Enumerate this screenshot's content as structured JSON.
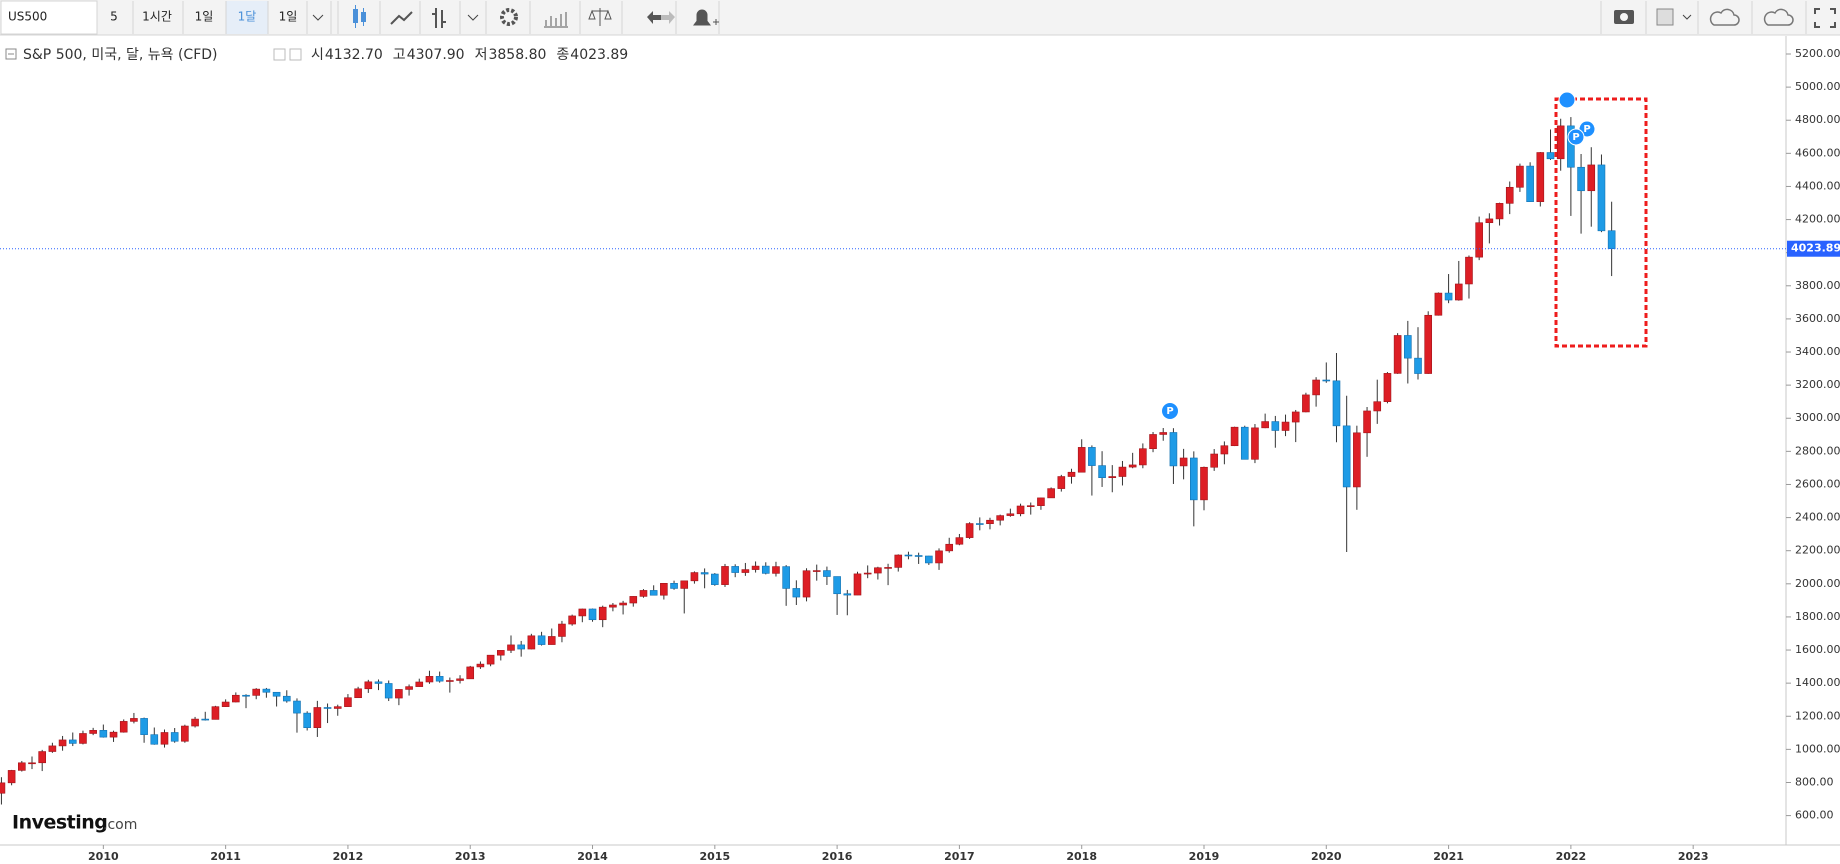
{
  "toolbar": {
    "symbol": "US500",
    "intervals": [
      "5",
      "1시간",
      "1일",
      "1달",
      "1일"
    ]
  },
  "legend": {
    "name": "S&P 500, 미국, 달, 뉴욕 (CFD)",
    "items": [
      {
        "label": "시",
        "value": "4132.70"
      },
      {
        "label": "고",
        "value": "4307.90"
      },
      {
        "label": "저",
        "value": "3858.80"
      },
      {
        "label": "종",
        "value": "4023.89"
      }
    ]
  },
  "watermark": {
    "brand": "Investing",
    "suffix": ".com"
  },
  "chart_data": {
    "type": "candlestick",
    "up_color": "#dd1e25",
    "down_color": "#1e9be6",
    "x": [
      "2009-03",
      "2009-04",
      "2009-05",
      "2009-06",
      "2009-07",
      "2009-08",
      "2009-09",
      "2009-10",
      "2009-11",
      "2009-12",
      "2010-01",
      "2010-02",
      "2010-03",
      "2010-04",
      "2010-05",
      "2010-06",
      "2010-07",
      "2010-08",
      "2010-09",
      "2010-10",
      "2010-11",
      "2010-12",
      "2011-01",
      "2011-02",
      "2011-03",
      "2011-04",
      "2011-05",
      "2011-06",
      "2011-07",
      "2011-08",
      "2011-09",
      "2011-10",
      "2011-11",
      "2011-12",
      "2012-01",
      "2012-02",
      "2012-03",
      "2012-04",
      "2012-05",
      "2012-06",
      "2012-07",
      "2012-08",
      "2012-09",
      "2012-10",
      "2012-11",
      "2012-12",
      "2013-01",
      "2013-02",
      "2013-03",
      "2013-04",
      "2013-05",
      "2013-06",
      "2013-07",
      "2013-08",
      "2013-09",
      "2013-10",
      "2013-11",
      "2013-12",
      "2014-01",
      "2014-02",
      "2014-03",
      "2014-04",
      "2014-05",
      "2014-06",
      "2014-07",
      "2014-08",
      "2014-09",
      "2014-10",
      "2014-11",
      "2014-12",
      "2015-01",
      "2015-02",
      "2015-03",
      "2015-04",
      "2015-05",
      "2015-06",
      "2015-07",
      "2015-08",
      "2015-09",
      "2015-10",
      "2015-11",
      "2015-12",
      "2016-01",
      "2016-02",
      "2016-03",
      "2016-04",
      "2016-05",
      "2016-06",
      "2016-07",
      "2016-08",
      "2016-09",
      "2016-10",
      "2016-11",
      "2016-12",
      "2017-01",
      "2017-02",
      "2017-03",
      "2017-04",
      "2017-05",
      "2017-06",
      "2017-07",
      "2017-08",
      "2017-09",
      "2017-10",
      "2017-11",
      "2017-12",
      "2018-01",
      "2018-02",
      "2018-03",
      "2018-04",
      "2018-05",
      "2018-06",
      "2018-07",
      "2018-08",
      "2018-09",
      "2018-10",
      "2018-11",
      "2018-12",
      "2019-01",
      "2019-02",
      "2019-03",
      "2019-04",
      "2019-05",
      "2019-06",
      "2019-07",
      "2019-08",
      "2019-09",
      "2019-10",
      "2019-11",
      "2019-12",
      "2020-01",
      "2020-02",
      "2020-03",
      "2020-04",
      "2020-05",
      "2020-06",
      "2020-07",
      "2020-08",
      "2020-09",
      "2020-10",
      "2020-11",
      "2020-12",
      "2021-01",
      "2021-02",
      "2021-03",
      "2021-04",
      "2021-05",
      "2021-06",
      "2021-07",
      "2021-08",
      "2021-09",
      "2021-10",
      "2021-11",
      "2021-12",
      "2022-01",
      "2022-02",
      "2022-03",
      "2022-04",
      "2022-05"
    ],
    "open": [
      735,
      798,
      873,
      919,
      919,
      987,
      1021,
      1057,
      1036,
      1096,
      1115,
      1074,
      1104,
      1169,
      1187,
      1089,
      1031,
      1102,
      1049,
      1141,
      1183,
      1181,
      1258,
      1286,
      1327,
      1326,
      1364,
      1345,
      1321,
      1292,
      1219,
      1131,
      1253,
      1247,
      1258,
      1312,
      1366,
      1408,
      1398,
      1310,
      1362,
      1379,
      1407,
      1441,
      1412,
      1416,
      1426,
      1498,
      1515,
      1569,
      1598,
      1631,
      1606,
      1686,
      1633,
      1682,
      1757,
      1806,
      1848,
      1783,
      1859,
      1872,
      1884,
      1924,
      1960,
      1931,
      2003,
      1972,
      2018,
      2068,
      2059,
      1995,
      2105,
      2068,
      2086,
      2107,
      2063,
      2104,
      1972,
      1920,
      2079,
      2080,
      2044,
      1940,
      1932,
      2060,
      2065,
      2097,
      2099,
      2174,
      2171,
      2168,
      2126,
      2199,
      2239,
      2279,
      2364,
      2363,
      2384,
      2412,
      2423,
      2470,
      2472,
      2519,
      2575,
      2648,
      2674,
      2824,
      2714,
      2641,
      2648,
      2705,
      2718,
      2816,
      2902,
      2914,
      2712,
      2760,
      2507,
      2704,
      2784,
      2834,
      2946,
      2752,
      2942,
      2980,
      2926,
      2977,
      3038,
      3141,
      3231,
      3226,
      2954,
      2585,
      2912,
      3044,
      3100,
      3271,
      3500,
      3363,
      3270,
      3622,
      3756,
      3714,
      3811,
      3973,
      4181,
      4204,
      4298,
      4395,
      4523,
      4308,
      4605,
      4567,
      4766,
      4516,
      4374,
      4530,
      4132.7
    ],
    "high": [
      832,
      876,
      930,
      957,
      997,
      1040,
      1081,
      1102,
      1113,
      1130,
      1150,
      1113,
      1181,
      1220,
      1192,
      1132,
      1120,
      1129,
      1149,
      1196,
      1227,
      1263,
      1302,
      1344,
      1333,
      1370,
      1371,
      1346,
      1357,
      1308,
      1230,
      1293,
      1277,
      1270,
      1334,
      1378,
      1420,
      1422,
      1416,
      1364,
      1392,
      1427,
      1475,
      1470,
      1434,
      1448,
      1504,
      1531,
      1570,
      1598,
      1688,
      1655,
      1698,
      1710,
      1730,
      1776,
      1814,
      1850,
      1851,
      1868,
      1884,
      1897,
      1925,
      1968,
      1991,
      2005,
      2019,
      2018,
      2075,
      2093,
      2065,
      2120,
      2118,
      2126,
      2135,
      2130,
      2133,
      2113,
      2021,
      2094,
      2116,
      2104,
      2044,
      1963,
      2073,
      2111,
      2103,
      2121,
      2178,
      2194,
      2188,
      2169,
      2214,
      2278,
      2301,
      2372,
      2401,
      2399,
      2418,
      2454,
      2484,
      2491,
      2520,
      2582,
      2658,
      2695,
      2873,
      2836,
      2801,
      2717,
      2742,
      2791,
      2848,
      2917,
      2941,
      2940,
      2815,
      2800,
      2708,
      2814,
      2860,
      2949,
      2955,
      2965,
      3028,
      3014,
      3022,
      3050,
      3154,
      3248,
      3337,
      3394,
      3136,
      2955,
      3068,
      3233,
      3279,
      3514,
      3588,
      3550,
      3646,
      3760,
      3871,
      3950,
      3983,
      4218,
      4238,
      4302,
      4430,
      4538,
      4546,
      4608,
      4744,
      4809,
      4819,
      4596,
      4637,
      4593,
      4307.9
    ],
    "low": [
      667,
      783,
      866,
      881,
      869,
      979,
      992,
      1020,
      1030,
      1086,
      1071,
      1045,
      1101,
      1157,
      1040,
      1028,
      1011,
      1040,
      1040,
      1132,
      1174,
      1181,
      1257,
      1284,
      1249,
      1303,
      1312,
      1259,
      1282,
      1101,
      1114,
      1075,
      1159,
      1203,
      1258,
      1312,
      1341,
      1358,
      1292,
      1267,
      1325,
      1378,
      1396,
      1403,
      1343,
      1398,
      1426,
      1486,
      1502,
      1537,
      1582,
      1560,
      1604,
      1627,
      1633,
      1647,
      1747,
      1768,
      1771,
      1738,
      1834,
      1815,
      1862,
      1916,
      1930,
      1905,
      1964,
      1821,
      2001,
      1973,
      1988,
      1981,
      2040,
      2048,
      2068,
      2057,
      2044,
      1867,
      1872,
      1894,
      2019,
      1993,
      1812,
      1810,
      1932,
      2034,
      2026,
      1992,
      2074,
      2148,
      2120,
      2114,
      2084,
      2188,
      2233,
      2271,
      2323,
      2329,
      2353,
      2405,
      2408,
      2418,
      2447,
      2519,
      2557,
      2605,
      2673,
      2533,
      2585,
      2553,
      2594,
      2698,
      2698,
      2795,
      2864,
      2603,
      2631,
      2347,
      2444,
      2682,
      2722,
      2832,
      2751,
      2729,
      2940,
      2822,
      2892,
      2856,
      3036,
      3070,
      3214,
      2855,
      2192,
      2447,
      2767,
      2966,
      3090,
      3268,
      3210,
      3234,
      3268,
      3620,
      3695,
      3710,
      3723,
      3955,
      4056,
      4164,
      4233,
      4367,
      4306,
      4279,
      4560,
      4495,
      4222,
      4115,
      4157,
      4124,
      3858.8
    ],
    "close": [
      798,
      873,
      919,
      919,
      987,
      1021,
      1057,
      1036,
      1096,
      1115,
      1074,
      1104,
      1169,
      1187,
      1089,
      1031,
      1102,
      1049,
      1141,
      1183,
      1181,
      1258,
      1286,
      1327,
      1326,
      1364,
      1345,
      1321,
      1292,
      1219,
      1131,
      1253,
      1247,
      1258,
      1312,
      1366,
      1408,
      1398,
      1310,
      1362,
      1379,
      1407,
      1441,
      1412,
      1416,
      1426,
      1498,
      1515,
      1569,
      1598,
      1631,
      1606,
      1686,
      1633,
      1682,
      1757,
      1806,
      1848,
      1783,
      1859,
      1872,
      1884,
      1924,
      1960,
      1931,
      2003,
      1972,
      2018,
      2068,
      2059,
      1995,
      2105,
      2068,
      2086,
      2107,
      2063,
      2104,
      1972,
      1920,
      2079,
      2080,
      2044,
      1940,
      1932,
      2060,
      2065,
      2097,
      2099,
      2174,
      2171,
      2168,
      2126,
      2199,
      2239,
      2279,
      2364,
      2363,
      2384,
      2412,
      2423,
      2470,
      2472,
      2519,
      2575,
      2648,
      2674,
      2824,
      2714,
      2641,
      2648,
      2705,
      2718,
      2816,
      2902,
      2914,
      2712,
      2760,
      2507,
      2704,
      2784,
      2834,
      2946,
      2752,
      2942,
      2980,
      2926,
      2977,
      3038,
      3141,
      3231,
      3226,
      2954,
      2585,
      2912,
      3044,
      3100,
      3271,
      3500,
      3363,
      3270,
      3622,
      3756,
      3714,
      3811,
      3973,
      4181,
      4204,
      4298,
      4395,
      4523,
      4308,
      4605,
      4567,
      4766,
      4516,
      4374,
      4530,
      4132,
      4023.89
    ],
    "last_price": 4023.89,
    "last_price_label": "4023.89",
    "last_price_color": "#2962ff",
    "xlim": [
      2009.155,
      2023.759
    ],
    "xticks": [
      2010,
      2011,
      2012,
      2013,
      2014,
      2015,
      2016,
      2017,
      2018,
      2019,
      2020,
      2021,
      2022,
      2023
    ],
    "ylim": [
      600,
      5200
    ],
    "yticks": [
      {
        "value": 5200,
        "label": "5200.00"
      },
      {
        "value": 5000,
        "label": "5000.00"
      },
      {
        "value": 4800,
        "label": "4800.00"
      },
      {
        "value": 4600,
        "label": "4600.00"
      },
      {
        "value": 4400,
        "label": "4400.00"
      },
      {
        "value": 4200,
        "label": "4200.00"
      },
      {
        "value": 4000,
        "label": "4000.00"
      },
      {
        "value": 3800,
        "label": "3800.00"
      },
      {
        "value": 3600,
        "label": "3600.00"
      },
      {
        "value": 3400,
        "label": "3400.00"
      },
      {
        "value": 3200,
        "label": "3200.00"
      },
      {
        "value": 3000,
        "label": "3000.00"
      },
      {
        "value": 2800,
        "label": "2800.00"
      },
      {
        "value": 2600,
        "label": "2600.00"
      },
      {
        "value": 2400,
        "label": "2400.00"
      },
      {
        "value": 2200,
        "label": "2200.00"
      },
      {
        "value": 2000,
        "label": "2000.00"
      },
      {
        "value": 1800,
        "label": "1800.00"
      },
      {
        "value": 1600,
        "label": "1600.00"
      },
      {
        "value": 1400,
        "label": "1400.00"
      },
      {
        "value": 1200,
        "label": "1200.00"
      },
      {
        "value": 1000,
        "label": "1000.00"
      },
      {
        "value": 800,
        "label": "800.00"
      },
      {
        "value": 600,
        "label": "600.00"
      }
    ],
    "grid": false
  }
}
